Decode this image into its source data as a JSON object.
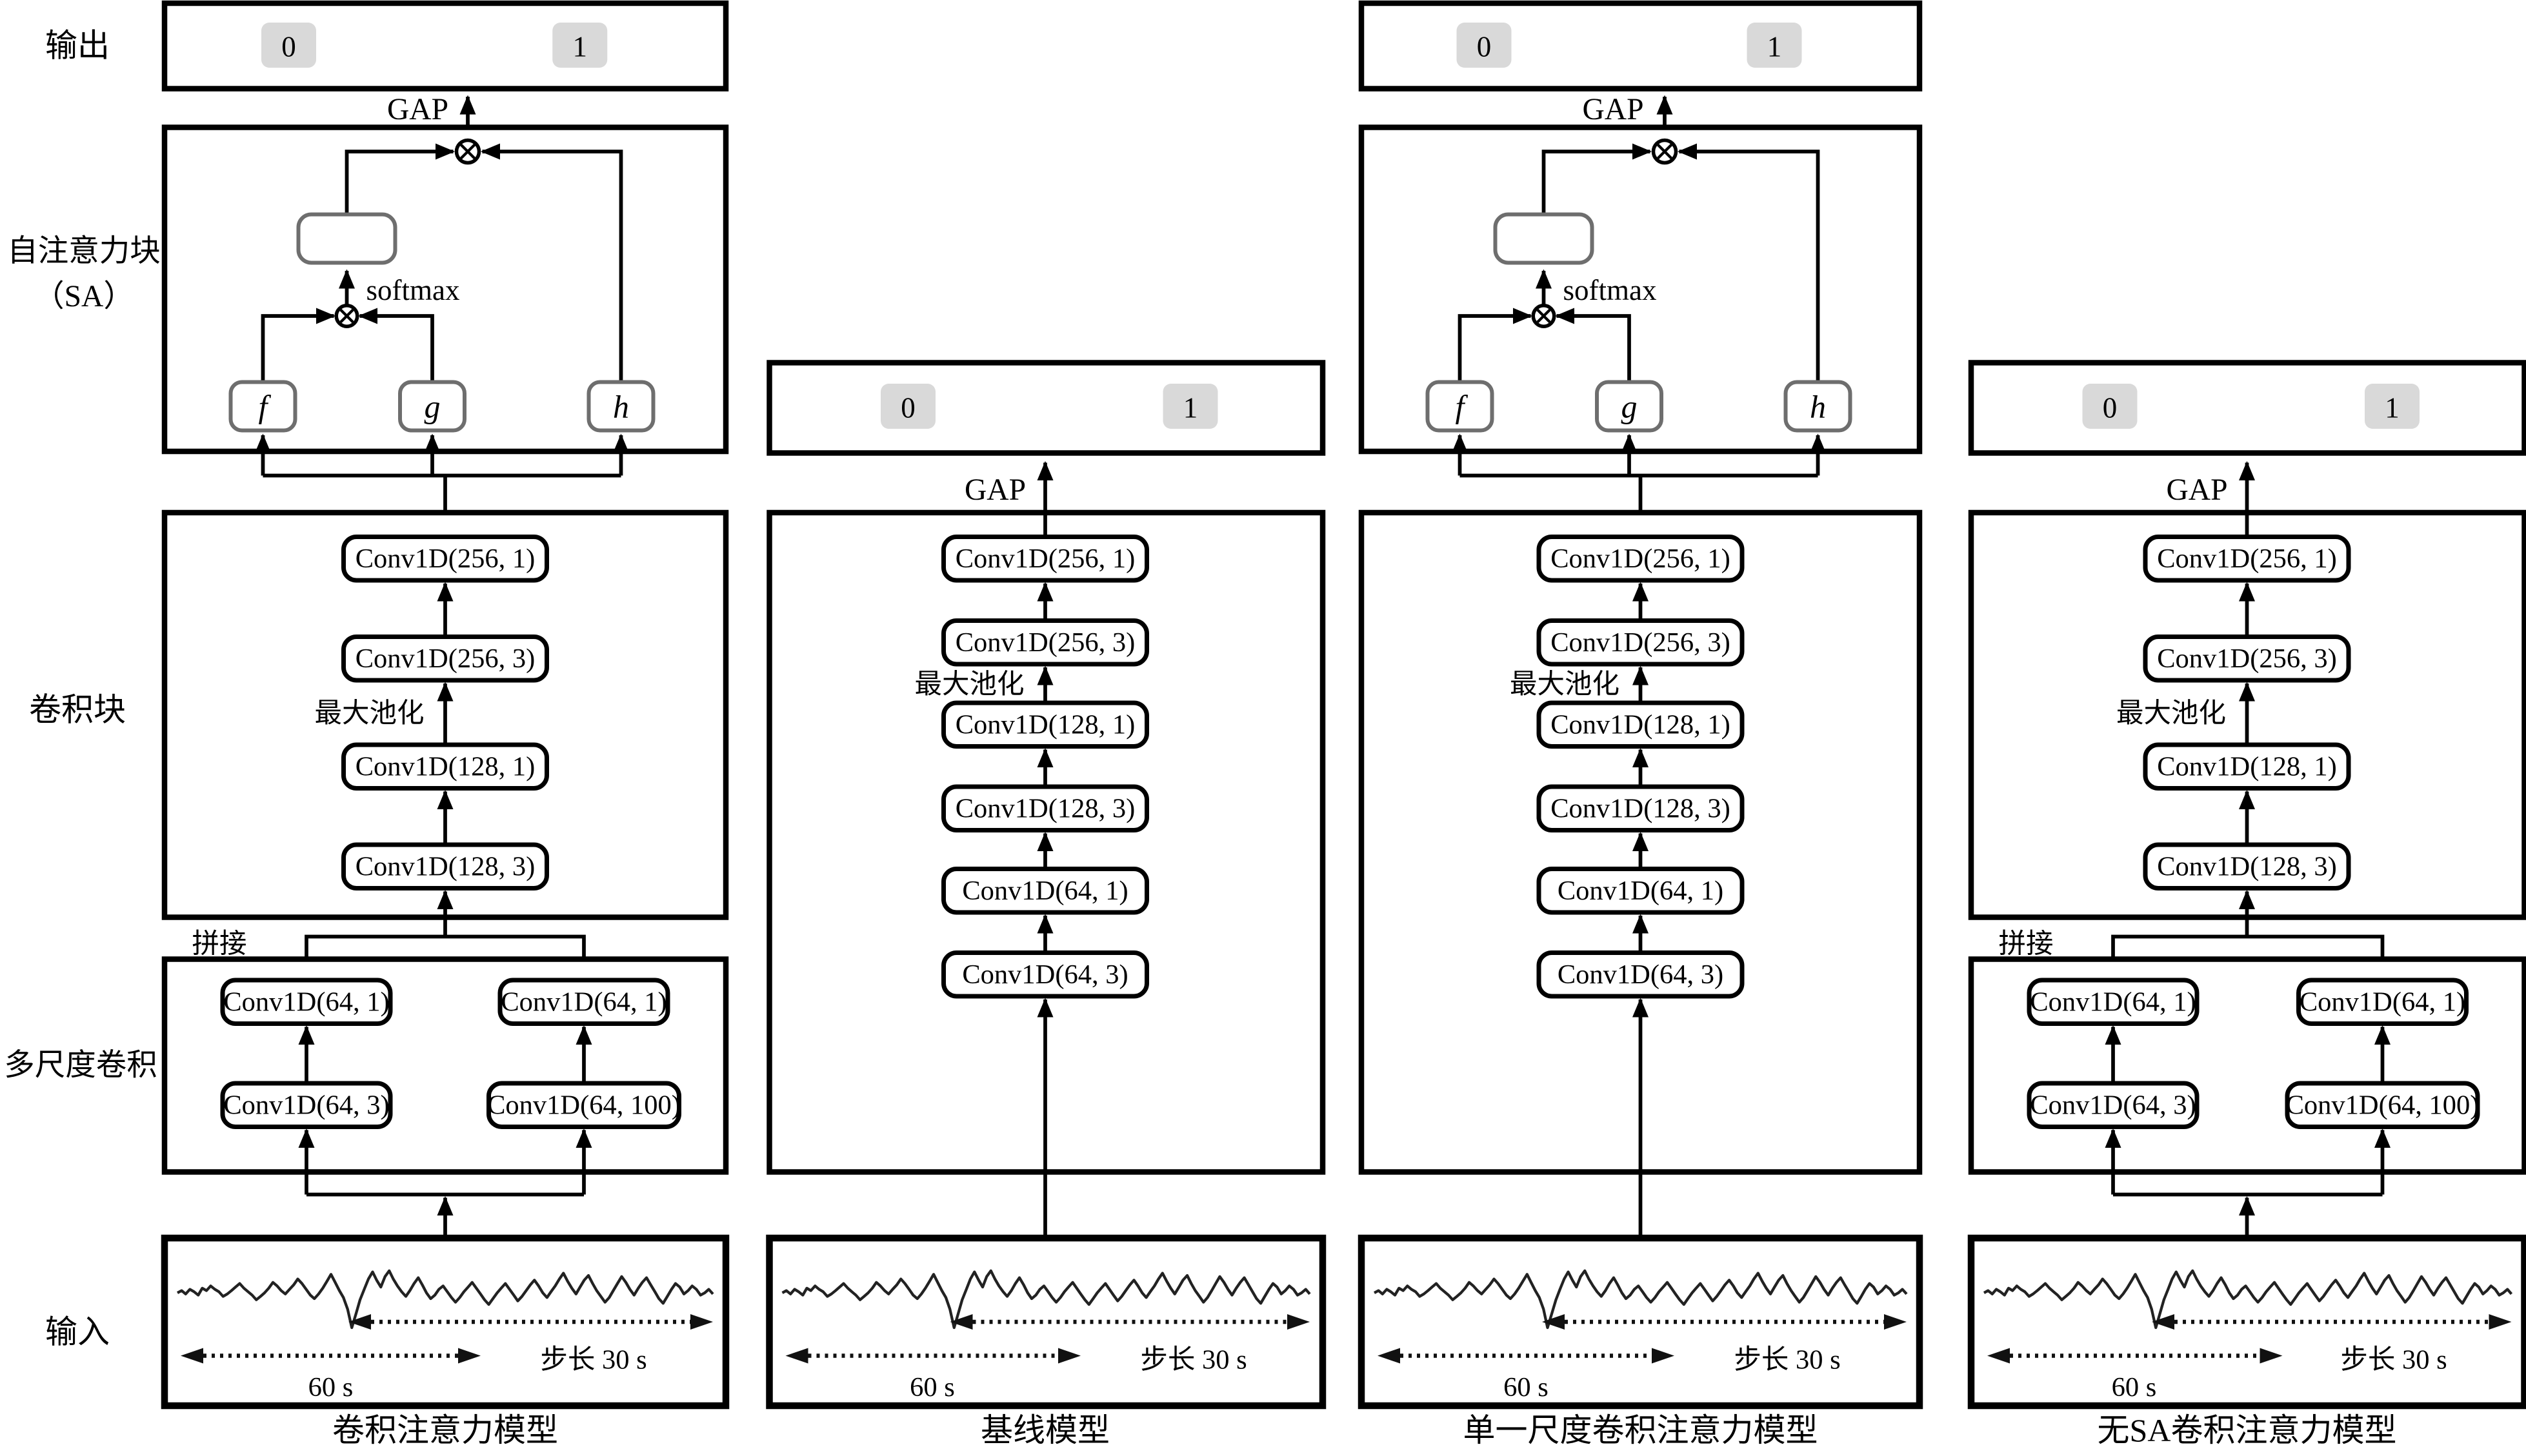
{
  "row_labels": {
    "output": "输出",
    "sa_line1": "自注意力块",
    "sa_line2": "（SA）",
    "conv_block": "卷积块",
    "multiscale": "多尺度卷积",
    "input": "输入"
  },
  "labels": {
    "gap": "GAP",
    "softmax": "softmax",
    "maxpool": "最大池化",
    "concat": "拼接",
    "class0": "0",
    "class1": "1",
    "f": "f",
    "g": "g",
    "h": "h",
    "window": "60 s",
    "stride": "步长 30 s"
  },
  "conv_layers": {
    "c256_1": "Conv1D(256, 1)",
    "c256_3": "Conv1D(256, 3)",
    "c128_1": "Conv1D(128, 1)",
    "c128_3": "Conv1D(128, 3)",
    "c64_1": "Conv1D(64, 1)",
    "c64_3": "Conv1D(64, 3)",
    "c64_100": "Conv1D(64, 100)"
  },
  "columns": [
    {
      "label": "卷积注意力模型"
    },
    {
      "label": "基线模型"
    },
    {
      "label": "单一尺度卷积注意力模型"
    },
    {
      "label": "无SA卷积注意力模型"
    }
  ],
  "icons": {
    "multiply": "⊗"
  },
  "colors": {
    "chip_bg": "#d9d9d9",
    "line": "#000000",
    "inner_box_border": "#6e6e6e"
  },
  "waveform": [
    0,
    2,
    -1,
    3,
    1,
    -2,
    4,
    2,
    6,
    3,
    1,
    -3,
    -1,
    2,
    5,
    8,
    4,
    1,
    -2,
    -6,
    -3,
    0,
    4,
    9,
    6,
    2,
    -1,
    3,
    7,
    12,
    8,
    3,
    -2,
    -5,
    -1,
    4,
    10,
    16,
    9,
    2,
    -4,
    -14,
    -30,
    -18,
    -6,
    3,
    12,
    18,
    11,
    5,
    14,
    19,
    12,
    6,
    1,
    -3,
    2,
    8,
    13,
    7,
    0,
    -5,
    -2,
    3,
    6,
    1,
    -4,
    -8,
    -4,
    1,
    5,
    9,
    4,
    -1,
    -6,
    -10,
    -5,
    0,
    4,
    8,
    3,
    -2,
    -7,
    -3,
    2,
    7,
    11,
    6,
    0,
    -4,
    1,
    6,
    12,
    17,
    10,
    4,
    -1,
    5,
    11,
    15,
    8,
    2,
    -3,
    -8,
    -4,
    2,
    8,
    14,
    9,
    3,
    -2,
    4,
    9,
    13,
    7,
    1,
    -5,
    -9,
    -3,
    3,
    8,
    5,
    -1,
    2,
    6,
    3,
    -2,
    0,
    3,
    -1
  ]
}
